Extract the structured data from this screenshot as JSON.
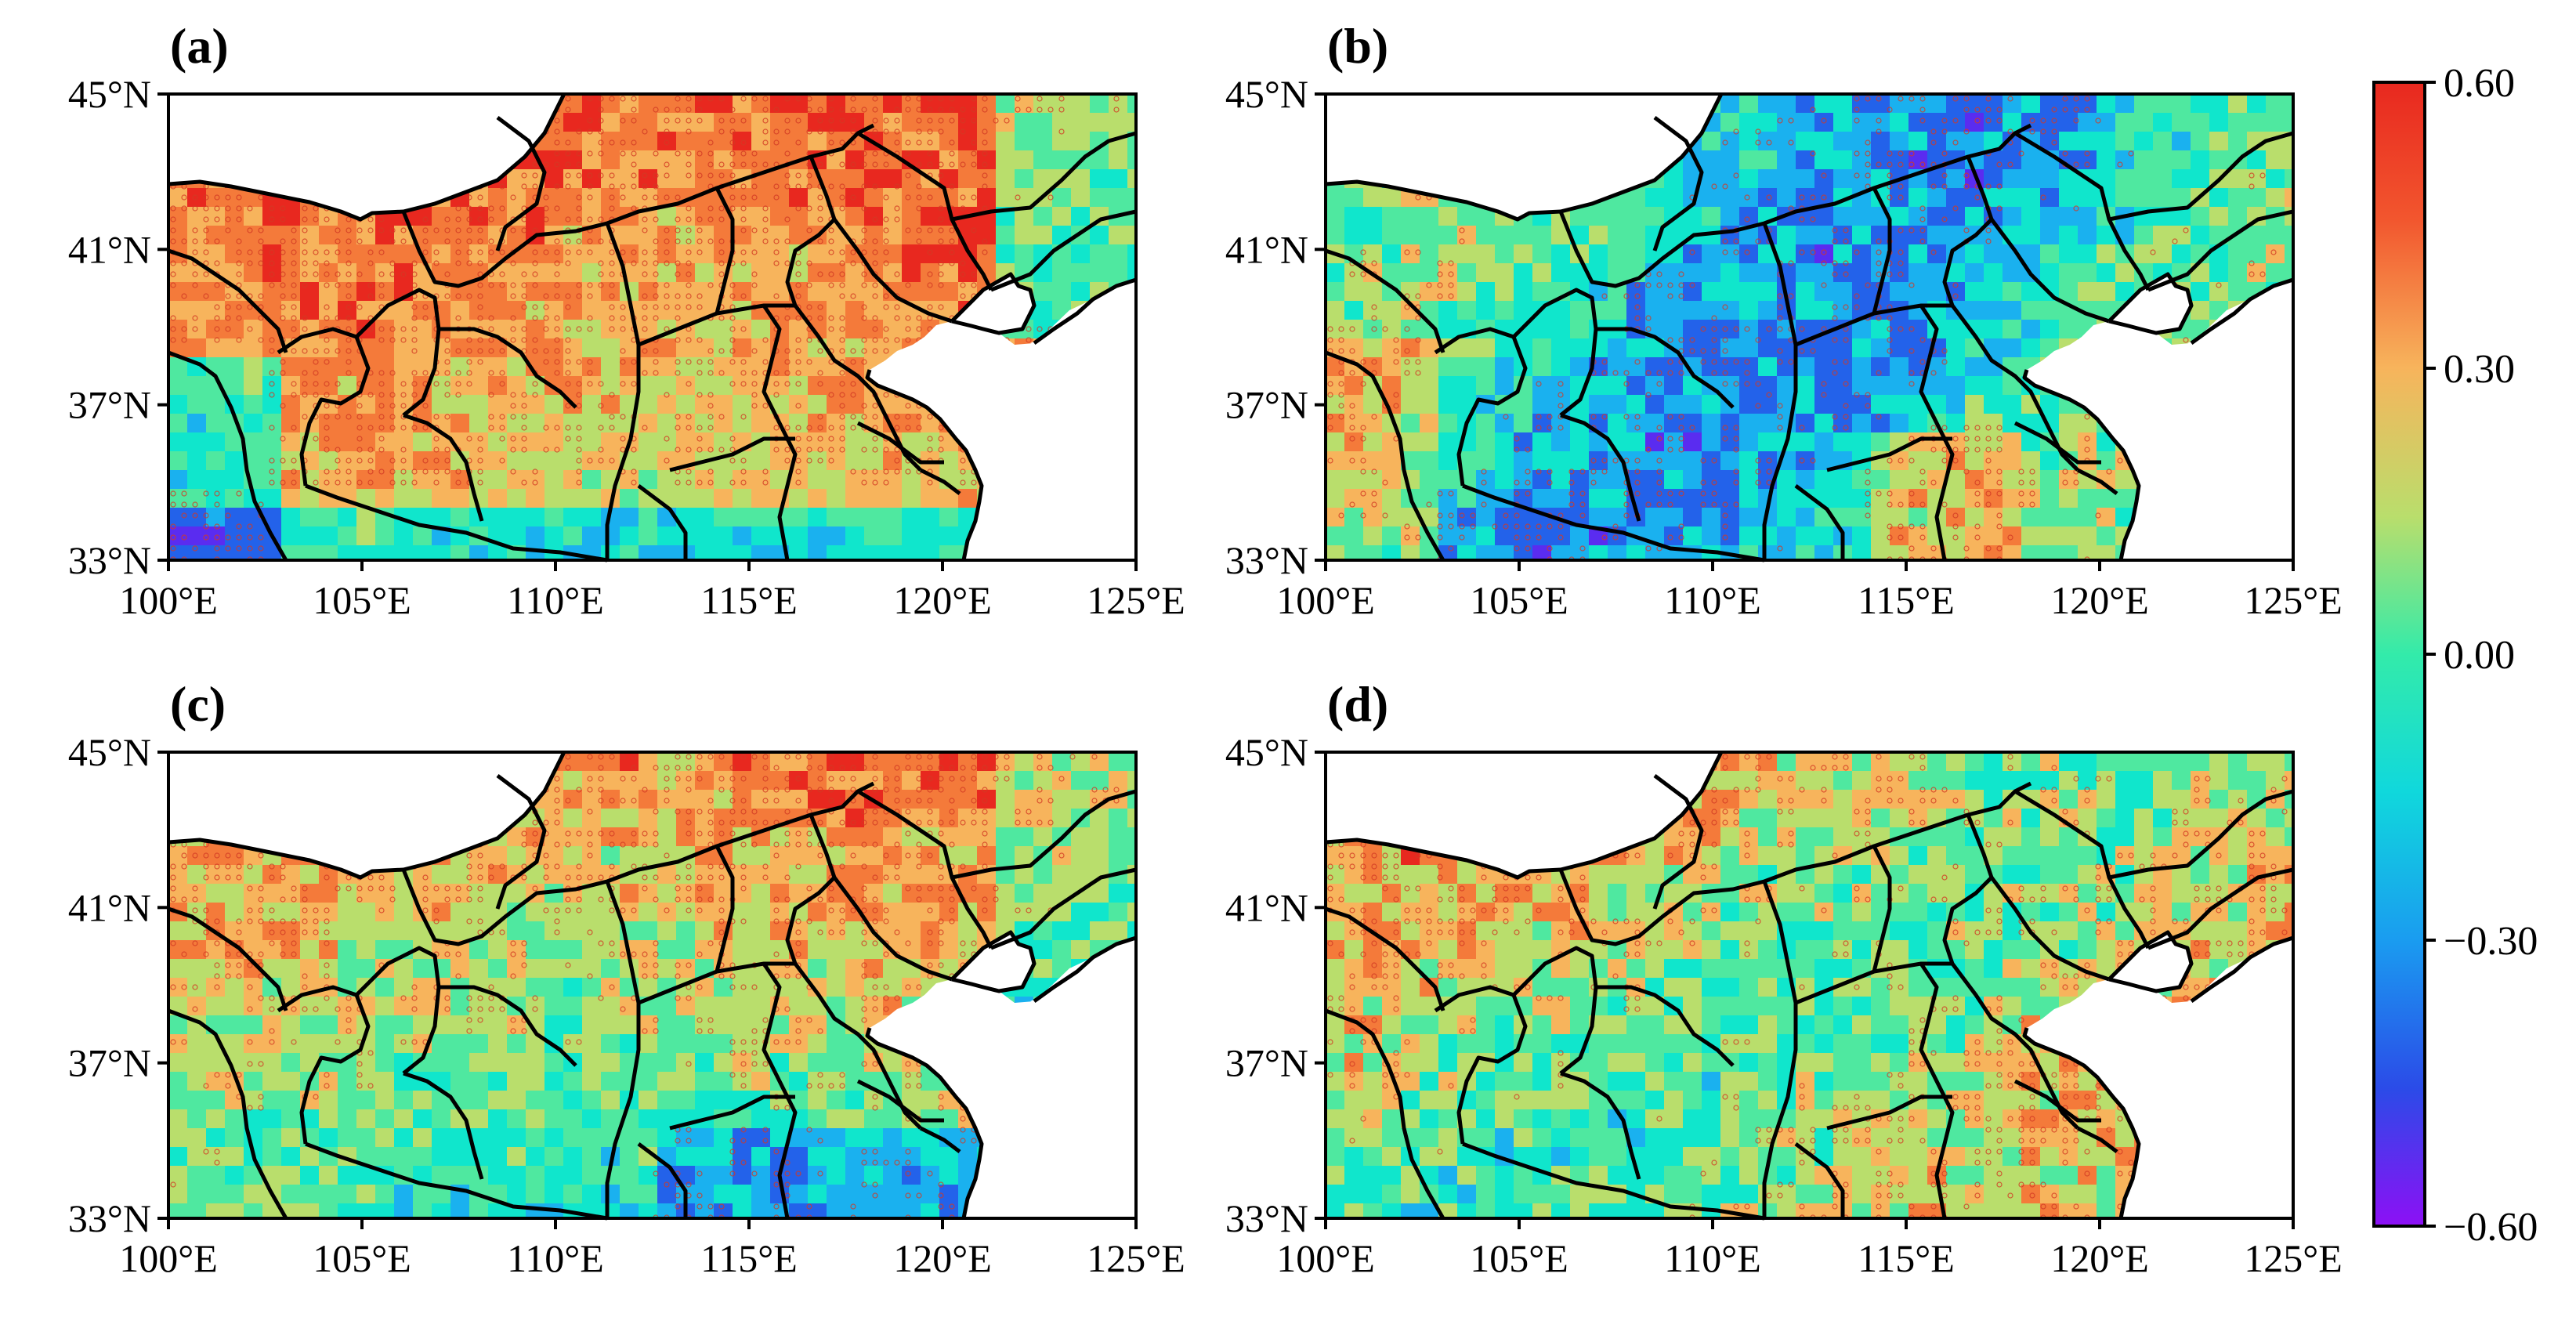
{
  "figure": {
    "panels": [
      {
        "label": "(a)",
        "scheme": "a"
      },
      {
        "label": "(b)",
        "scheme": "b"
      },
      {
        "label": "(c)",
        "scheme": "c"
      },
      {
        "label": "(d)",
        "scheme": "d"
      }
    ],
    "lat_ticks": [
      "45°N",
      "41°N",
      "37°N",
      "33°N"
    ],
    "lon_ticks": [
      "100°E",
      "105°E",
      "110°E",
      "115°E",
      "120°E",
      "125°E"
    ],
    "lat_range": [
      33,
      45
    ],
    "lon_range": [
      100,
      125
    ],
    "colorbar": {
      "ticks": [
        "0.60",
        "0.30",
        "0.00",
        "−0.30",
        "−0.60"
      ],
      "tick_values": [
        0.6,
        0.3,
        0.0,
        -0.3,
        -0.6
      ],
      "range": [
        -0.6,
        0.6
      ],
      "colors": [
        "#e8281f",
        "#f47a3a",
        "#f7b45c",
        "#b9de6c",
        "#4fe8a0",
        "#10e6cc",
        "#1ab1ef",
        "#2362ea",
        "#5a2cf0",
        "#8d10f5"
      ]
    }
  }
}
